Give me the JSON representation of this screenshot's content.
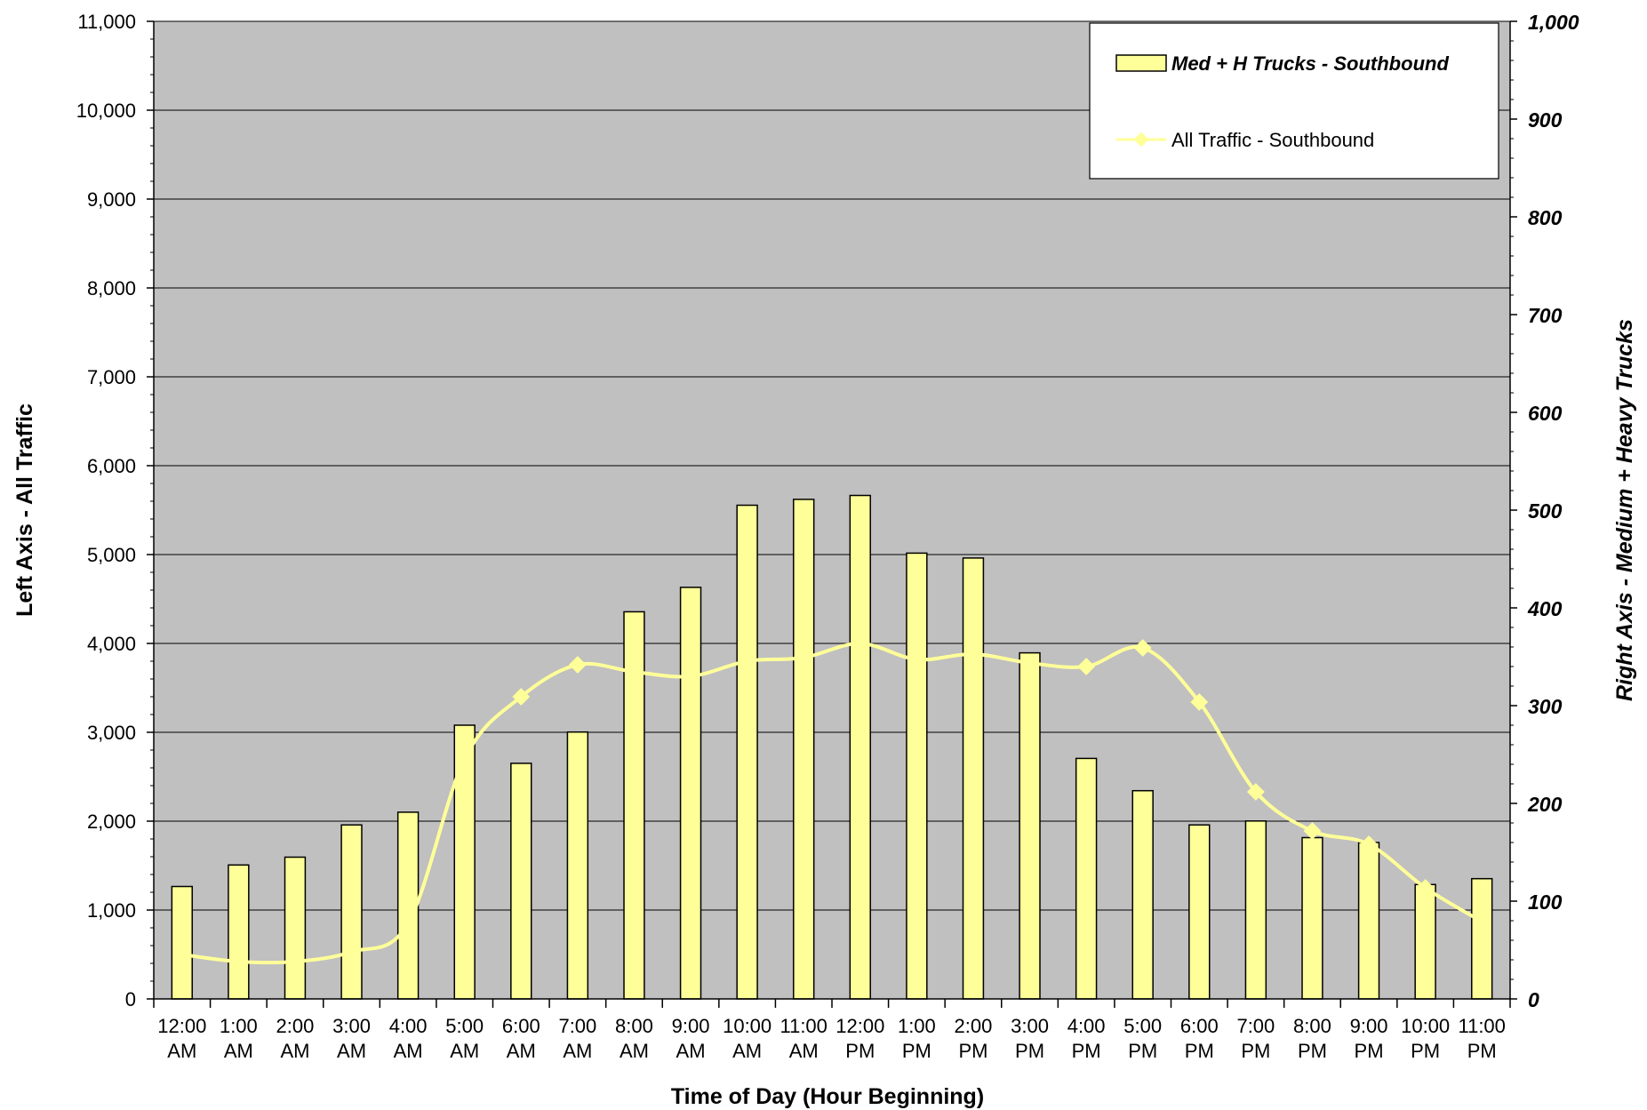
{
  "chart_data": {
    "type": "bar",
    "categories": [
      "12:00 AM",
      "1:00 AM",
      "2:00 AM",
      "3:00 AM",
      "4:00 AM",
      "5:00 AM",
      "6:00 AM",
      "7:00 AM",
      "8:00 AM",
      "9:00 AM",
      "10:00 AM",
      "11:00 AM",
      "12:00 PM",
      "1:00 PM",
      "2:00 PM",
      "3:00 PM",
      "4:00 PM",
      "5:00 PM",
      "6:00 PM",
      "7:00 PM",
      "8:00 PM",
      "9:00 PM",
      "10:00 PM",
      "11:00 PM"
    ],
    "category_lines": [
      [
        "12:00",
        "AM"
      ],
      [
        "1:00",
        "AM"
      ],
      [
        "2:00",
        "AM"
      ],
      [
        "3:00",
        "AM"
      ],
      [
        "4:00",
        "AM"
      ],
      [
        "5:00",
        "AM"
      ],
      [
        "6:00",
        "AM"
      ],
      [
        "7:00",
        "AM"
      ],
      [
        "8:00",
        "AM"
      ],
      [
        "9:00",
        "AM"
      ],
      [
        "10:00",
        "AM"
      ],
      [
        "11:00",
        "AM"
      ],
      [
        "12:00",
        "PM"
      ],
      [
        "1:00",
        "PM"
      ],
      [
        "2:00",
        "PM"
      ],
      [
        "3:00",
        "PM"
      ],
      [
        "4:00",
        "PM"
      ],
      [
        "5:00",
        "PM"
      ],
      [
        "6:00",
        "PM"
      ],
      [
        "7:00",
        "PM"
      ],
      [
        "8:00",
        "PM"
      ],
      [
        "9:00",
        "PM"
      ],
      [
        "10:00",
        "PM"
      ],
      [
        "11:00",
        "PM"
      ]
    ],
    "series": [
      {
        "name": "Med + H Trucks - Southbound",
        "kind": "bar",
        "axis": "right",
        "color": "#ffff99",
        "values": [
          115,
          137,
          145,
          178,
          191,
          280,
          241,
          273,
          396,
          421,
          505,
          511,
          515,
          456,
          451,
          354,
          246,
          213,
          178,
          182,
          165,
          160,
          117,
          123
        ]
      },
      {
        "name": "All Traffic - Southbound",
        "kind": "line",
        "axis": "left",
        "color": "#ffff99",
        "values": [
          500,
          420,
          420,
          530,
          850,
          2700,
          3400,
          3760,
          3680,
          3630,
          3800,
          3840,
          4000,
          3820,
          3880,
          3780,
          3740,
          3950,
          3340,
          2330,
          1890,
          1740,
          1250,
          870
        ]
      }
    ],
    "y_left": {
      "label": "Left Axis - All Traffic",
      "min": 0,
      "max": 11000,
      "ticks": [
        "0",
        "1,000",
        "2,000",
        "3,000",
        "4,000",
        "5,000",
        "6,000",
        "7,000",
        "8,000",
        "9,000",
        "10,000",
        "11,000"
      ]
    },
    "y_right": {
      "label": "Right Axis - Medium + Heavy Trucks",
      "min": 0,
      "max": 1000,
      "ticks": [
        "0",
        "100",
        "200",
        "300",
        "400",
        "500",
        "600",
        "700",
        "800",
        "900",
        "1,000"
      ]
    },
    "xlabel": "Time of Day (Hour Beginning)",
    "title": "",
    "grid": true,
    "plot_background": "#c0c0c0",
    "legend_position": "top-right"
  }
}
